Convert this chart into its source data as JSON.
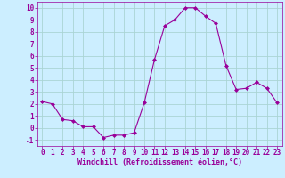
{
  "x": [
    0,
    1,
    2,
    3,
    4,
    5,
    6,
    7,
    8,
    9,
    10,
    11,
    12,
    13,
    14,
    15,
    16,
    17,
    18,
    19,
    20,
    21,
    22,
    23
  ],
  "y": [
    2.2,
    2.0,
    0.7,
    0.6,
    0.1,
    0.1,
    -0.8,
    -0.6,
    -0.6,
    -0.4,
    2.1,
    5.7,
    8.5,
    9.0,
    10.0,
    10.0,
    9.3,
    8.7,
    5.2,
    3.2,
    3.3,
    3.8,
    3.3,
    2.1
  ],
  "line_color": "#990099",
  "marker": "D",
  "marker_size": 2.0,
  "bg_color": "#cceeff",
  "grid_color": "#aad4d4",
  "xlabel": "Windchill (Refroidissement éolien,°C)",
  "xlabel_color": "#990099",
  "tick_color": "#990099",
  "ylim": [
    -1.5,
    10.5
  ],
  "xlim": [
    -0.5,
    23.5
  ],
  "yticks": [
    -1,
    0,
    1,
    2,
    3,
    4,
    5,
    6,
    7,
    8,
    9,
    10
  ],
  "xticks": [
    0,
    1,
    2,
    3,
    4,
    5,
    6,
    7,
    8,
    9,
    10,
    11,
    12,
    13,
    14,
    15,
    16,
    17,
    18,
    19,
    20,
    21,
    22,
    23
  ],
  "tick_fontsize": 5.5,
  "xlabel_fontsize": 6.0
}
